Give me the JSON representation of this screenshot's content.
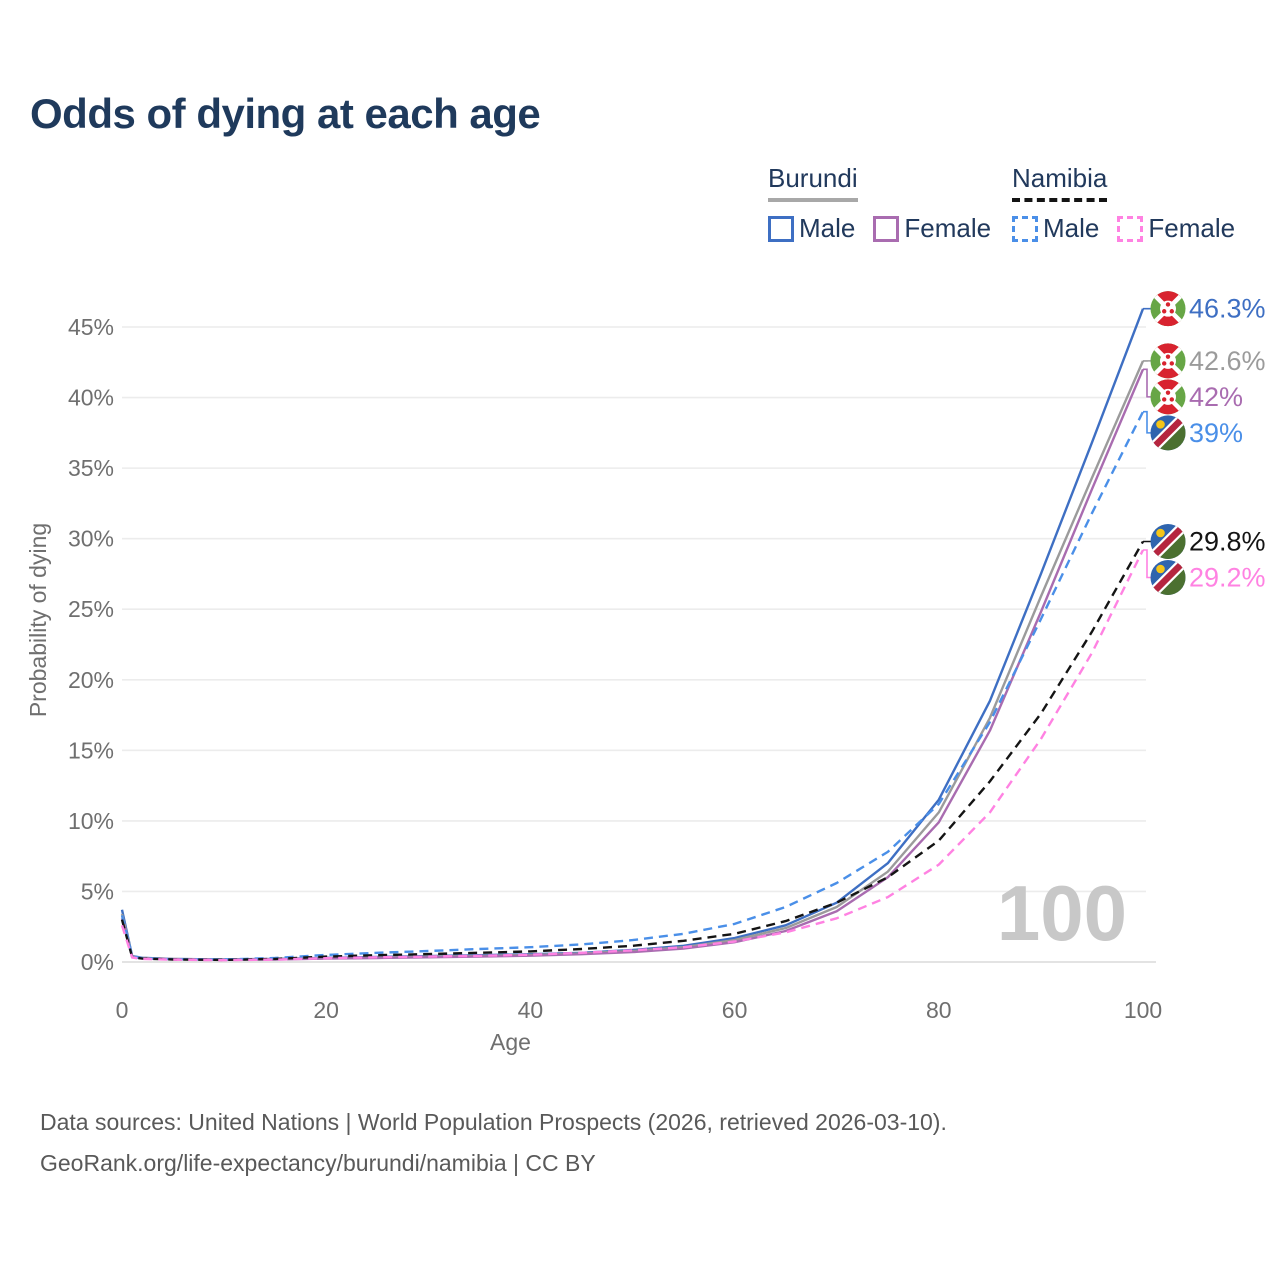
{
  "title": "Odds of dying at each age",
  "legend": {
    "groups": [
      {
        "country": "Burundi",
        "line_style": "solid",
        "line_color": "#a8a8a8",
        "items": [
          {
            "label": "Male",
            "color": "#3e6fc3",
            "dashed": false
          },
          {
            "label": "Female",
            "color": "#a96cb0",
            "dashed": false
          }
        ]
      },
      {
        "country": "Namibia",
        "line_style": "dashed",
        "line_color": "#141414",
        "items": [
          {
            "label": "Male",
            "color": "#4a8fe8",
            "dashed": true
          },
          {
            "label": "Female",
            "color": "#ff82e2",
            "dashed": true
          }
        ]
      }
    ]
  },
  "chart_data": {
    "type": "line",
    "title": "Odds of dying at each age",
    "xlabel": "Age",
    "ylabel": "Probability of dying",
    "x_ticks": [
      0,
      20,
      40,
      60,
      80,
      100
    ],
    "y_ticks": [
      0,
      5,
      10,
      15,
      20,
      25,
      30,
      35,
      40,
      45
    ],
    "y_tick_suffix": "%",
    "xlim": [
      0,
      100
    ],
    "ylim": [
      0,
      47
    ],
    "grid": "horizontal",
    "legend_position": "top-right",
    "watermark": "100",
    "x": [
      0,
      1,
      2,
      5,
      10,
      15,
      20,
      25,
      30,
      35,
      40,
      45,
      50,
      55,
      60,
      65,
      70,
      75,
      80,
      85,
      90,
      95,
      100
    ],
    "series": [
      {
        "name": "Burundi Male",
        "id": "burundi-male",
        "country": "Burundi",
        "sex": "male",
        "color": "#3e6fc3",
        "dash": false,
        "end_label": "46.3%",
        "flag": "burundi",
        "values": [
          3.7,
          0.42,
          0.3,
          0.22,
          0.18,
          0.22,
          0.3,
          0.36,
          0.42,
          0.48,
          0.55,
          0.65,
          0.85,
          1.15,
          1.7,
          2.6,
          4.2,
          7.0,
          11.5,
          18.5,
          27.5,
          36.8,
          46.3
        ]
      },
      {
        "name": "Burundi",
        "id": "burundi-all",
        "country": "Burundi",
        "sex": "both",
        "color": "#9b9b9b",
        "dash": false,
        "end_label": "42.6%",
        "flag": "burundi",
        "values": [
          3.4,
          0.39,
          0.28,
          0.21,
          0.17,
          0.2,
          0.27,
          0.32,
          0.38,
          0.43,
          0.5,
          0.6,
          0.78,
          1.05,
          1.55,
          2.4,
          3.9,
          6.4,
          10.6,
          17.3,
          25.9,
          34.3,
          42.6
        ]
      },
      {
        "name": "Burundi Female",
        "id": "burundi-female",
        "country": "Burundi",
        "sex": "female",
        "color": "#a96cb0",
        "dash": false,
        "end_label": "42%",
        "flag": "burundi",
        "values": [
          3.1,
          0.36,
          0.26,
          0.2,
          0.16,
          0.18,
          0.24,
          0.28,
          0.33,
          0.38,
          0.45,
          0.55,
          0.7,
          0.95,
          1.4,
          2.2,
          3.6,
          6.0,
          9.9,
          16.4,
          24.8,
          33.5,
          42.0
        ]
      },
      {
        "name": "Namibia Male",
        "id": "namibia-male",
        "country": "Namibia",
        "sex": "male",
        "color": "#4a8fe8",
        "dash": true,
        "end_label": "39%",
        "flag": "namibia",
        "values": [
          3.3,
          0.38,
          0.27,
          0.2,
          0.18,
          0.28,
          0.5,
          0.65,
          0.78,
          0.92,
          1.05,
          1.25,
          1.55,
          2.0,
          2.7,
          3.9,
          5.6,
          7.8,
          11.2,
          17.0,
          24.3,
          31.8,
          39.0
        ]
      },
      {
        "name": "Namibia",
        "id": "namibia-all",
        "country": "Namibia",
        "sex": "both",
        "color": "#141414",
        "dash": true,
        "end_label": "29.8%",
        "flag": "namibia",
        "values": [
          3.0,
          0.34,
          0.24,
          0.18,
          0.15,
          0.22,
          0.38,
          0.48,
          0.56,
          0.65,
          0.75,
          0.92,
          1.15,
          1.5,
          2.0,
          2.9,
          4.2,
          6.0,
          8.6,
          12.8,
          17.6,
          23.4,
          29.8
        ]
      },
      {
        "name": "Namibia Female",
        "id": "namibia-female",
        "country": "Namibia",
        "sex": "female",
        "color": "#ff82e2",
        "dash": true,
        "end_label": "29.2%",
        "flag": "namibia",
        "values": [
          2.6,
          0.31,
          0.22,
          0.16,
          0.13,
          0.17,
          0.27,
          0.33,
          0.38,
          0.44,
          0.52,
          0.65,
          0.82,
          1.05,
          1.45,
          2.1,
          3.1,
          4.6,
          6.9,
          10.6,
          15.8,
          21.9,
          29.2
        ]
      }
    ],
    "flag_colors": {
      "burundi": {
        "red": "#d8232f",
        "green": "#67a646",
        "white": "#ffffff"
      },
      "namibia": {
        "blue": "#2f64ae",
        "red": "#b5253f",
        "green": "#4b7030",
        "yellow": "#f5c518",
        "white": "#ffffff"
      }
    }
  },
  "footer": {
    "line1": "Data sources: United Nations | World Population Prospects (2026, retrieved 2026-03-10).",
    "line2": "GeoRank.org/life-expectancy/burundi/namibia | CC BY"
  }
}
